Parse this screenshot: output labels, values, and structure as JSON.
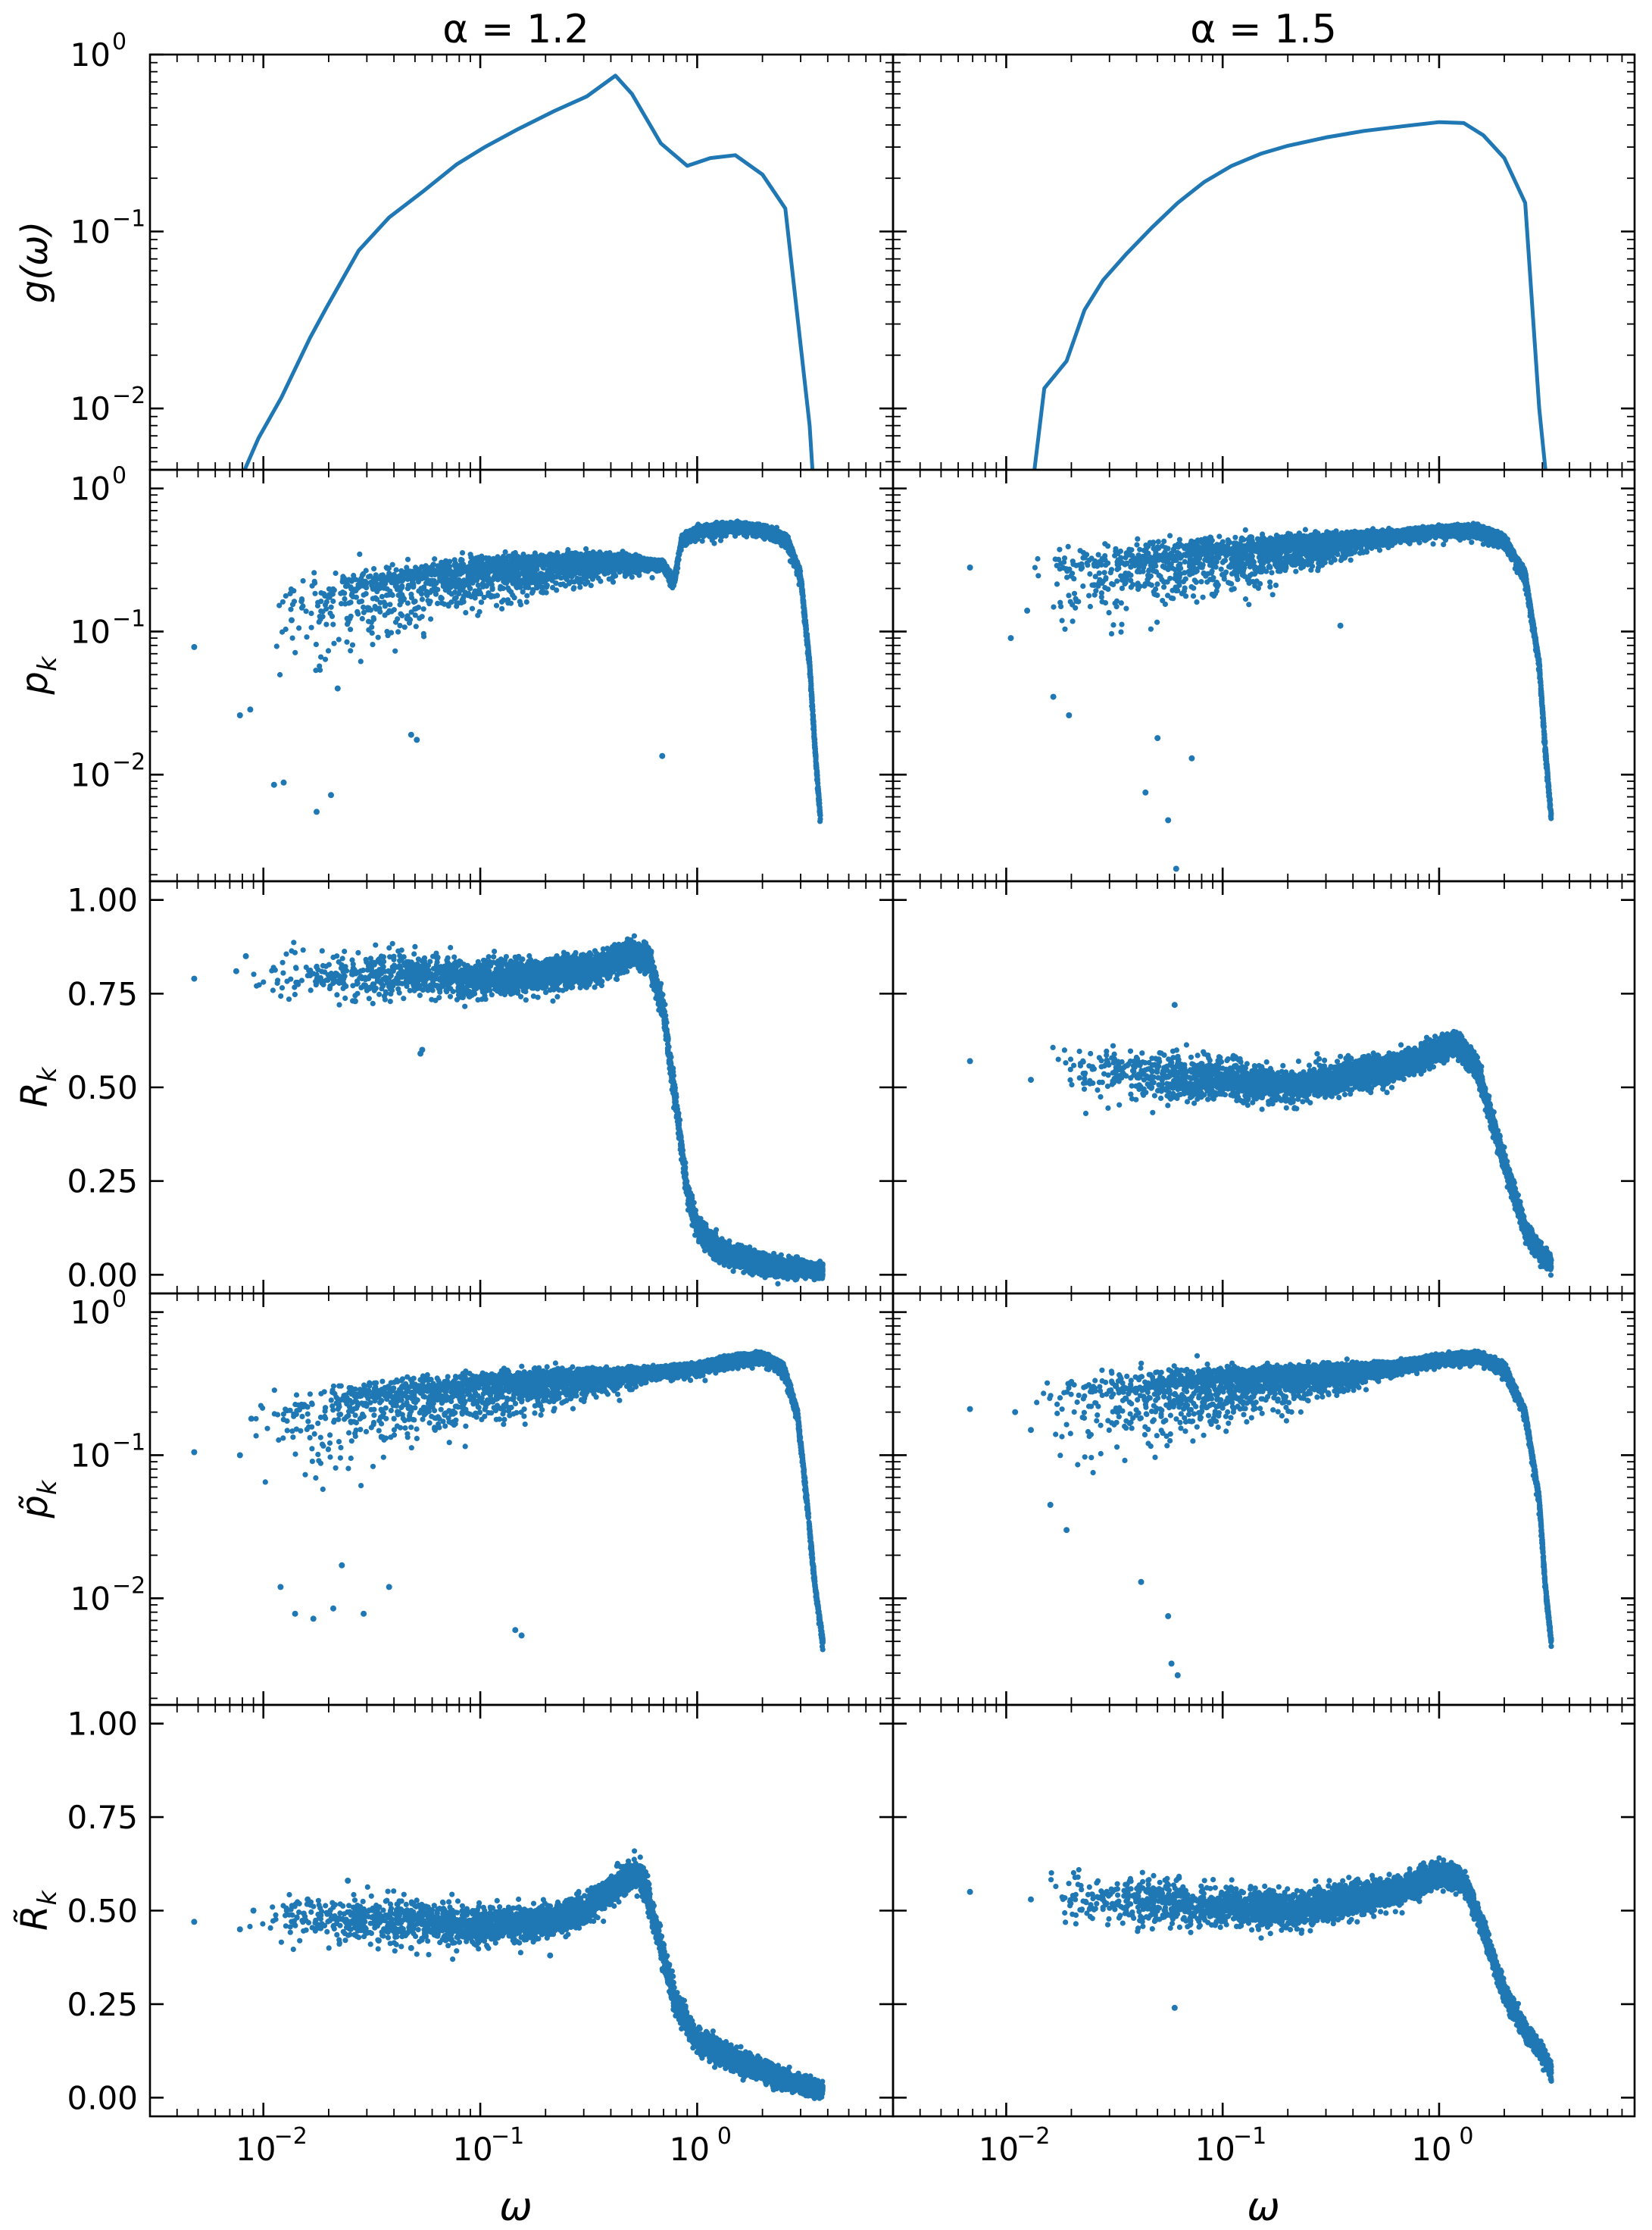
{
  "figure": {
    "column_titles": [
      "α = 1.2",
      "α = 1.5"
    ],
    "xlabel": "ω",
    "series_color": "#1f77b4"
  },
  "chart_data": [
    {
      "id": "g-alpha-1.2",
      "type": "line",
      "ylabel": "g(ω)",
      "x_scale": "log",
      "y_scale": "log",
      "xlim": [
        0.003,
        8.0
      ],
      "ylim": [
        0.0045,
        1.0
      ],
      "yticks": [
        {
          "value": 0.01,
          "base": "10",
          "exp": "−2"
        },
        {
          "value": 0.1,
          "base": "10",
          "exp": "−1"
        },
        {
          "value": 1,
          "base": "10",
          "exp": "0"
        }
      ],
      "x": [
        0.0082,
        0.0095,
        0.0121,
        0.0164,
        0.0195,
        0.0275,
        0.038,
        0.055,
        0.078,
        0.105,
        0.15,
        0.22,
        0.31,
        0.42,
        0.5,
        0.68,
        0.9,
        1.15,
        1.5,
        2.0,
        2.55,
        3.3,
        3.4
      ],
      "y": [
        0.0045,
        0.0068,
        0.0115,
        0.025,
        0.037,
        0.078,
        0.12,
        0.17,
        0.24,
        0.3,
        0.38,
        0.48,
        0.58,
        0.76,
        0.6,
        0.315,
        0.235,
        0.26,
        0.27,
        0.21,
        0.135,
        0.008,
        0.0045
      ]
    },
    {
      "id": "g-alpha-1.5",
      "type": "line",
      "ylabel": "",
      "x_scale": "log",
      "y_scale": "log",
      "xlim": [
        0.003,
        8.0
      ],
      "ylim": [
        0.0045,
        1.0
      ],
      "x": [
        0.0135,
        0.015,
        0.019,
        0.023,
        0.028,
        0.036,
        0.047,
        0.062,
        0.082,
        0.11,
        0.15,
        0.2,
        0.3,
        0.45,
        0.7,
        1.0,
        1.3,
        1.6,
        2.0,
        2.5,
        2.9,
        3.1
      ],
      "y": [
        0.0045,
        0.013,
        0.0185,
        0.036,
        0.053,
        0.075,
        0.105,
        0.145,
        0.19,
        0.235,
        0.275,
        0.305,
        0.34,
        0.37,
        0.395,
        0.415,
        0.41,
        0.35,
        0.26,
        0.145,
        0.01,
        0.0045
      ]
    },
    {
      "id": "pk-alpha-1.2",
      "type": "scatter",
      "ylabel": "p_k",
      "x_scale": "log",
      "y_scale": "log",
      "xlim": [
        0.003,
        8.0
      ],
      "ylim": [
        0.0018,
        1.35
      ],
      "yticks": [
        {
          "value": 0.01,
          "base": "10",
          "exp": "−2"
        },
        {
          "value": 0.1,
          "base": "10",
          "exp": "−1"
        },
        {
          "value": 1,
          "base": "10",
          "exp": "0"
        }
      ],
      "ridge_x": [
        0.009,
        0.015,
        0.03,
        0.06,
        0.12,
        0.25,
        0.45,
        0.7,
        0.78,
        0.85,
        1.0,
        1.5,
        2.0,
        2.6,
        3.0,
        3.3,
        3.5,
        3.7
      ],
      "ridge_y": [
        0.13,
        0.16,
        0.2,
        0.24,
        0.28,
        0.31,
        0.32,
        0.3,
        0.22,
        0.45,
        0.52,
        0.55,
        0.53,
        0.45,
        0.25,
        0.06,
        0.015,
        0.005
      ],
      "outliers_x": [
        0.0048,
        0.0078,
        0.0087,
        0.0112,
        0.0124,
        0.0176,
        0.0205,
        0.048,
        0.051,
        0.69,
        0.0135,
        0.022
      ],
      "outliers_y": [
        0.078,
        0.026,
        0.0285,
        0.0085,
        0.0088,
        0.0055,
        0.0072,
        0.019,
        0.0175,
        0.0135,
        0.12,
        0.04
      ]
    },
    {
      "id": "pk-alpha-1.5",
      "type": "scatter",
      "ylabel": "",
      "x_scale": "log",
      "y_scale": "log",
      "xlim": [
        0.003,
        8.0
      ],
      "ylim": [
        0.0018,
        1.35
      ],
      "ridge_x": [
        0.012,
        0.02,
        0.04,
        0.08,
        0.15,
        0.3,
        0.6,
        1.0,
        1.5,
        2.0,
        2.5,
        2.9,
        3.1,
        3.3
      ],
      "ridge_y": [
        0.25,
        0.27,
        0.3,
        0.34,
        0.38,
        0.43,
        0.48,
        0.52,
        0.53,
        0.45,
        0.25,
        0.06,
        0.015,
        0.005
      ],
      "outliers_x": [
        0.0068,
        0.0105,
        0.0125,
        0.0165,
        0.0195,
        0.044,
        0.056,
        0.061,
        0.05,
        0.072,
        0.35
      ],
      "outliers_y": [
        0.28,
        0.09,
        0.14,
        0.035,
        0.026,
        0.0075,
        0.0048,
        0.0022,
        0.018,
        0.013,
        0.11
      ]
    },
    {
      "id": "rk-alpha-1.2",
      "type": "scatter",
      "ylabel": "R_k",
      "x_scale": "log",
      "y_scale": "linear",
      "xlim": [
        0.003,
        8.0
      ],
      "ylim": [
        -0.05,
        1.05
      ],
      "yticks": [
        {
          "value": 0,
          "label": "0.00"
        },
        {
          "value": 0.25,
          "label": "0.25"
        },
        {
          "value": 0.5,
          "label": "0.50"
        },
        {
          "value": 0.75,
          "label": "0.75"
        },
        {
          "value": 1.0,
          "label": "1.00"
        }
      ],
      "ridge_x": [
        0.008,
        0.02,
        0.05,
        0.1,
        0.2,
        0.35,
        0.5,
        0.6,
        0.7,
        0.8,
        0.9,
        1.0,
        1.2,
        1.5,
        2.0,
        2.5,
        3.0,
        3.5,
        3.8
      ],
      "ridge_y": [
        0.8,
        0.8,
        0.8,
        0.79,
        0.8,
        0.82,
        0.86,
        0.84,
        0.7,
        0.45,
        0.22,
        0.13,
        0.08,
        0.05,
        0.03,
        0.02,
        0.015,
        0.01,
        0.01
      ],
      "outliers_x": [
        0.0048,
        0.0075,
        0.0083,
        0.0265,
        0.054,
        0.053
      ],
      "outliers_y": [
        0.79,
        0.81,
        0.85,
        0.73,
        0.6,
        0.59
      ]
    },
    {
      "id": "rk-alpha-1.5",
      "type": "scatter",
      "ylabel": "",
      "x_scale": "log",
      "y_scale": "linear",
      "xlim": [
        0.003,
        8.0
      ],
      "ylim": [
        -0.05,
        1.05
      ],
      "ridge_x": [
        0.015,
        0.03,
        0.06,
        0.1,
        0.2,
        0.4,
        0.7,
        1.0,
        1.2,
        1.5,
        2.0,
        2.5,
        3.0,
        3.3
      ],
      "ridge_y": [
        0.54,
        0.54,
        0.53,
        0.52,
        0.5,
        0.53,
        0.56,
        0.6,
        0.62,
        0.55,
        0.3,
        0.12,
        0.05,
        0.03
      ],
      "outliers_x": [
        0.0068,
        0.013,
        0.06
      ],
      "outliers_y": [
        0.57,
        0.52,
        0.72
      ]
    },
    {
      "id": "ptilde-alpha-1.2",
      "type": "scatter",
      "ylabel": "p̃_k",
      "x_scale": "log",
      "y_scale": "log",
      "xlim": [
        0.003,
        8.0
      ],
      "ylim": [
        0.0018,
        1.35
      ],
      "yticks": [
        {
          "value": 0.01,
          "base": "10",
          "exp": "−2"
        },
        {
          "value": 0.1,
          "base": "10",
          "exp": "−1"
        },
        {
          "value": 1,
          "base": "10",
          "exp": "0"
        }
      ],
      "ridge_x": [
        0.008,
        0.015,
        0.03,
        0.06,
        0.12,
        0.25,
        0.5,
        1.0,
        1.5,
        2.0,
        2.5,
        2.9,
        3.2,
        3.5,
        3.8
      ],
      "ridge_y": [
        0.16,
        0.2,
        0.24,
        0.28,
        0.32,
        0.35,
        0.38,
        0.42,
        0.48,
        0.5,
        0.42,
        0.2,
        0.05,
        0.012,
        0.005
      ],
      "outliers_x": [
        0.0048,
        0.0078,
        0.0088,
        0.012,
        0.014,
        0.017,
        0.021,
        0.023,
        0.029,
        0.038,
        0.145,
        0.155
      ],
      "outliers_y": [
        0.105,
        0.1,
        0.18,
        0.012,
        0.0078,
        0.0072,
        0.0085,
        0.017,
        0.0078,
        0.012,
        0.006,
        0.0055
      ]
    },
    {
      "id": "ptilde-alpha-1.5",
      "type": "scatter",
      "ylabel": "",
      "x_scale": "log",
      "y_scale": "log",
      "xlim": [
        0.003,
        8.0
      ],
      "ylim": [
        0.0018,
        1.35
      ],
      "ridge_x": [
        0.012,
        0.02,
        0.04,
        0.08,
        0.15,
        0.3,
        0.6,
        1.0,
        1.5,
        2.0,
        2.5,
        2.9,
        3.1,
        3.3
      ],
      "ridge_y": [
        0.22,
        0.25,
        0.28,
        0.32,
        0.35,
        0.38,
        0.42,
        0.48,
        0.5,
        0.42,
        0.2,
        0.05,
        0.012,
        0.005
      ],
      "outliers_x": [
        0.0068,
        0.011,
        0.013,
        0.016,
        0.019,
        0.042,
        0.056,
        0.058,
        0.062
      ],
      "outliers_y": [
        0.21,
        0.2,
        0.15,
        0.045,
        0.03,
        0.013,
        0.0075,
        0.0035,
        0.0029
      ]
    },
    {
      "id": "rtilde-alpha-1.2",
      "type": "scatter",
      "ylabel": "R̃_k",
      "x_scale": "log",
      "y_scale": "linear",
      "xlim": [
        0.003,
        8.0
      ],
      "ylim": [
        -0.05,
        1.05
      ],
      "yticks": [
        {
          "value": 0,
          "label": "0.00"
        },
        {
          "value": 0.25,
          "label": "0.25"
        },
        {
          "value": 0.5,
          "label": "0.50"
        },
        {
          "value": 0.75,
          "label": "0.75"
        },
        {
          "value": 1.0,
          "label": "1.00"
        }
      ],
      "ridge_x": [
        0.008,
        0.02,
        0.05,
        0.1,
        0.2,
        0.3,
        0.45,
        0.55,
        0.65,
        0.8,
        1.0,
        1.5,
        2.0,
        2.5,
        3.0,
        3.5,
        3.8
      ],
      "ridge_y": [
        0.47,
        0.48,
        0.47,
        0.46,
        0.47,
        0.5,
        0.58,
        0.6,
        0.45,
        0.25,
        0.15,
        0.1,
        0.07,
        0.05,
        0.035,
        0.025,
        0.02
      ],
      "outliers_x": [
        0.0048,
        0.0078,
        0.009,
        0.016,
        0.0245,
        0.034,
        0.048,
        0.21
      ],
      "outliers_y": [
        0.47,
        0.45,
        0.5,
        0.53,
        0.58,
        0.42,
        0.4,
        0.38
      ]
    },
    {
      "id": "rtilde-alpha-1.5",
      "type": "scatter",
      "ylabel": "",
      "x_scale": "log",
      "y_scale": "linear",
      "xlim": [
        0.003,
        8.0
      ],
      "ylim": [
        -0.05,
        1.05
      ],
      "ridge_x": [
        0.015,
        0.03,
        0.06,
        0.1,
        0.2,
        0.4,
        0.7,
        1.0,
        1.3,
        1.6,
        2.0,
        2.5,
        3.0,
        3.3
      ],
      "ridge_y": [
        0.53,
        0.53,
        0.52,
        0.51,
        0.5,
        0.53,
        0.56,
        0.6,
        0.58,
        0.45,
        0.28,
        0.18,
        0.12,
        0.07
      ],
      "outliers_x": [
        0.0068,
        0.013,
        0.06
      ],
      "outliers_y": [
        0.55,
        0.53,
        0.24
      ]
    }
  ]
}
